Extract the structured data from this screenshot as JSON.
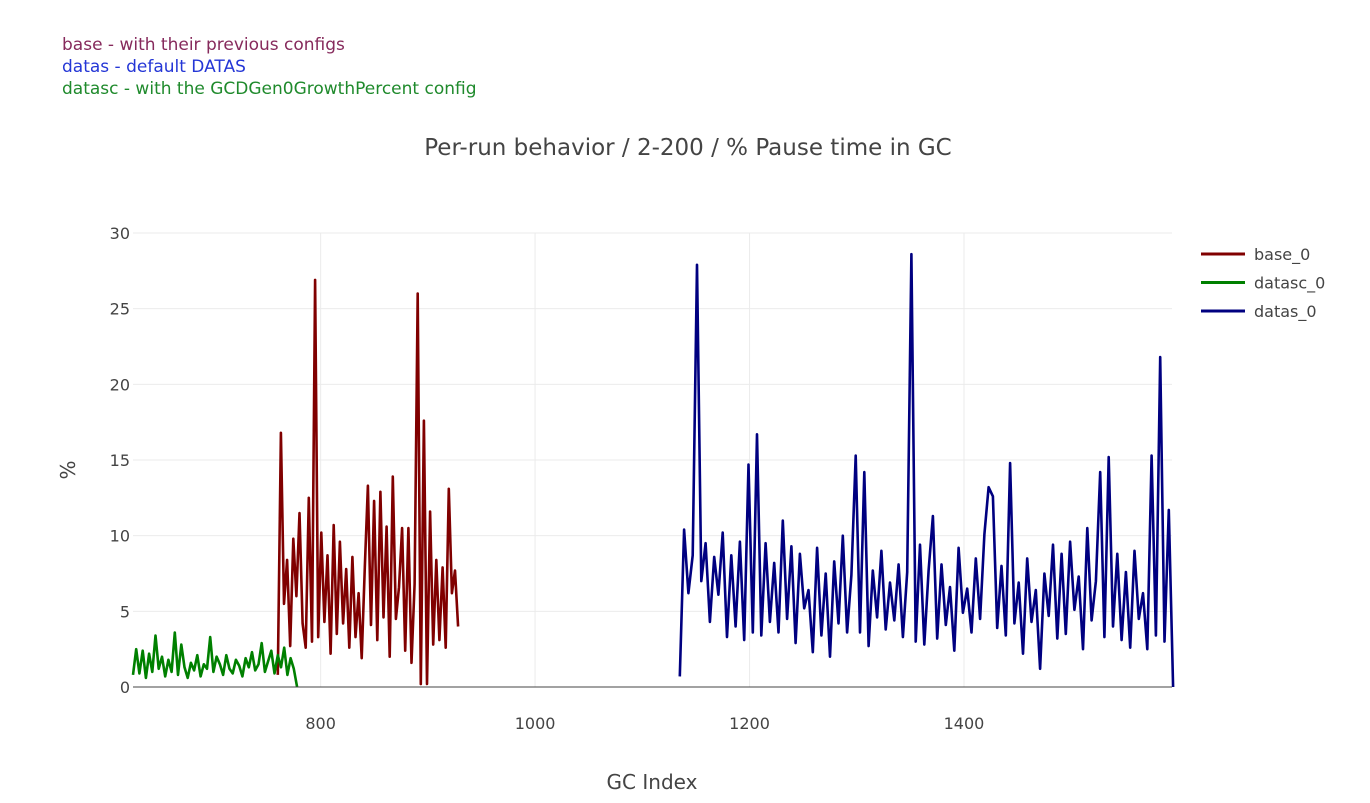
{
  "annotations": [
    {
      "text": "base - with their previous configs",
      "color": "#862a5c"
    },
    {
      "text": "datas - default DATAS",
      "color": "#2436d6"
    },
    {
      "text": "datasc - with the GCDGen0GrowthPercent config",
      "color": "#1f8a2c"
    }
  ],
  "chart_data": {
    "type": "line",
    "title": "Per-run behavior / 2-200 / % Pause time in GC",
    "xlabel": "GC Index",
    "ylabel": "%",
    "xlim": [
      625,
      1594
    ],
    "ylim": [
      0,
      30
    ],
    "xticks": [
      800,
      1000,
      1200,
      1400
    ],
    "yticks": [
      0,
      5,
      10,
      15,
      20,
      25,
      30
    ],
    "grid": true,
    "legend_position": "right",
    "series": [
      {
        "name": "base_0",
        "color": "#800000",
        "x_start": 760,
        "x_step": 2.9,
        "values": [
          0.8,
          16.8,
          5.5,
          8.4,
          2.7,
          9.8,
          6.0,
          11.5,
          4.2,
          2.6,
          12.5,
          3.0,
          26.9,
          3.3,
          10.2,
          4.3,
          8.7,
          2.2,
          10.7,
          3.5,
          9.6,
          4.2,
          7.8,
          2.6,
          8.6,
          3.3,
          6.2,
          1.9,
          7.9,
          13.3,
          4.1,
          12.3,
          3.1,
          12.9,
          4.6,
          10.6,
          2.0,
          13.9,
          4.5,
          6.6,
          10.5,
          2.4,
          10.5,
          1.6,
          6.8,
          26.0,
          0.2,
          17.6,
          0.2,
          11.6,
          2.8,
          8.4,
          3.1,
          7.9,
          2.6,
          13.1,
          6.2,
          7.7,
          4.0
        ]
      },
      {
        "name": "datasc_0",
        "color": "#008000",
        "x_start": 625,
        "x_step": 3,
        "values": [
          0.8,
          2.5,
          0.9,
          2.4,
          0.6,
          2.2,
          1.0,
          3.4,
          1.2,
          2.0,
          0.7,
          1.8,
          1.0,
          3.6,
          0.8,
          2.8,
          1.3,
          0.6,
          1.6,
          1.1,
          2.1,
          0.7,
          1.5,
          1.2,
          3.3,
          1.0,
          2.0,
          1.5,
          0.8,
          2.1,
          1.2,
          0.9,
          1.8,
          1.4,
          0.7,
          1.9,
          1.3,
          2.3,
          1.1,
          1.5,
          2.9,
          1.0,
          1.7,
          2.4,
          0.9,
          2.1,
          1.3,
          2.6,
          0.8,
          1.9,
          1.2,
          0.0
        ]
      },
      {
        "name": "datas_0",
        "color": "#000080",
        "x_start": 1135,
        "x_step": 4,
        "values": [
          0.7,
          10.4,
          6.2,
          8.7,
          27.9,
          7.0,
          9.5,
          4.3,
          8.6,
          6.1,
          10.2,
          3.3,
          8.7,
          4.0,
          9.6,
          3.1,
          14.7,
          3.6,
          16.7,
          3.4,
          9.5,
          4.3,
          8.2,
          3.6,
          11.0,
          4.5,
          9.3,
          2.9,
          8.8,
          5.2,
          6.4,
          2.3,
          9.2,
          3.4,
          7.5,
          2.0,
          8.3,
          4.2,
          10.0,
          3.6,
          7.4,
          15.3,
          3.6,
          14.2,
          2.7,
          7.7,
          4.6,
          9.0,
          3.8,
          6.9,
          4.4,
          8.1,
          3.3,
          7.6,
          28.6,
          3.0,
          9.4,
          2.8,
          7.7,
          11.3,
          3.2,
          8.1,
          4.1,
          6.6,
          2.4,
          9.2,
          4.9,
          6.5,
          3.6,
          8.5,
          4.5,
          10.1,
          13.2,
          12.6,
          3.9,
          8.0,
          3.4,
          14.8,
          4.2,
          6.9,
          2.2,
          8.5,
          4.3,
          6.4,
          1.2,
          7.5,
          4.7,
          9.4,
          3.2,
          8.8,
          3.5,
          9.6,
          5.1,
          7.3,
          2.5,
          10.5,
          4.4,
          7.0,
          14.2,
          3.3,
          15.2,
          4.0,
          8.8,
          3.1,
          7.6,
          2.6,
          9.0,
          4.5,
          6.2,
          2.5,
          15.3,
          3.4,
          21.8,
          3.0,
          11.7,
          0.0
        ]
      }
    ]
  }
}
